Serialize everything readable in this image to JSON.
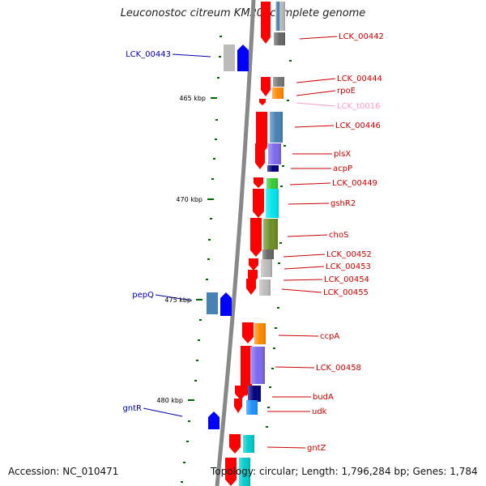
{
  "title": "Leuconostoc citreum KM20, complete genome",
  "accession": "Accession: NC_010471",
  "footer_info": "Topology: circular; Length: 1,796,284 bp; Genes: 1,784",
  "colors": {
    "strand_forward": "#ff0000",
    "label_right": "#cc0000",
    "label_left": "#0000aa",
    "label_trna": "#ff99cc",
    "tick": "#006600",
    "backbone": "#888888"
  },
  "scale_labels": [
    {
      "text": "465 kbp"
    },
    {
      "text": "470 kbp"
    },
    {
      "text": "475 kbp"
    },
    {
      "text": "480 kbp"
    }
  ],
  "genes": [
    {
      "label": "LCK_00442",
      "side": "right",
      "cog_color": "#666666"
    },
    {
      "label": "LCK_00443",
      "side": "left",
      "cog_color": "#0000ff"
    },
    {
      "label": "LCK_00444",
      "side": "right",
      "cog_color": "#777777"
    },
    {
      "label": "rpoE",
      "side": "right",
      "cog_color": "#ff8800"
    },
    {
      "label": "LCK_t0016",
      "side": "right",
      "cog_color": "#ff99cc"
    },
    {
      "label": "LCK_00446",
      "side": "right",
      "cog_color": "#4682b4"
    },
    {
      "label": "plsX",
      "side": "right",
      "cog_color": "#7b68ee"
    },
    {
      "label": "acpP",
      "side": "right",
      "cog_color": "#000080"
    },
    {
      "label": "LCK_00449",
      "side": "right",
      "cog_color": "#32cd32"
    },
    {
      "label": "gshR2",
      "side": "right",
      "cog_color": "#00e5ee"
    },
    {
      "label": "choS",
      "side": "right",
      "cog_color": "#6b8e23"
    },
    {
      "label": "LCK_00452",
      "side": "right",
      "cog_color": "#666666"
    },
    {
      "label": "LCK_00453",
      "side": "right",
      "cog_color": "#bbbbbb"
    },
    {
      "label": "LCK_00454",
      "side": "right",
      "cog_color": "#bbbbbb"
    },
    {
      "label": "LCK_00455",
      "side": "right",
      "cog_color": "#bbbbbb"
    },
    {
      "label": "pepQ",
      "side": "left",
      "cog_color": "#4682b4"
    },
    {
      "label": "ccpA",
      "side": "right",
      "cog_color": "#ff8800"
    },
    {
      "label": "LCK_00458",
      "side": "right",
      "cog_color": "#7b68ee"
    },
    {
      "label": "budA",
      "side": "right",
      "cog_color": "#000080"
    },
    {
      "label": "udk",
      "side": "right",
      "cog_color": "#1e90ff"
    },
    {
      "label": "gntR",
      "side": "left",
      "cog_color": "#0000ff"
    },
    {
      "label": "gntZ",
      "side": "right",
      "cog_color": "#00cccc"
    }
  ]
}
